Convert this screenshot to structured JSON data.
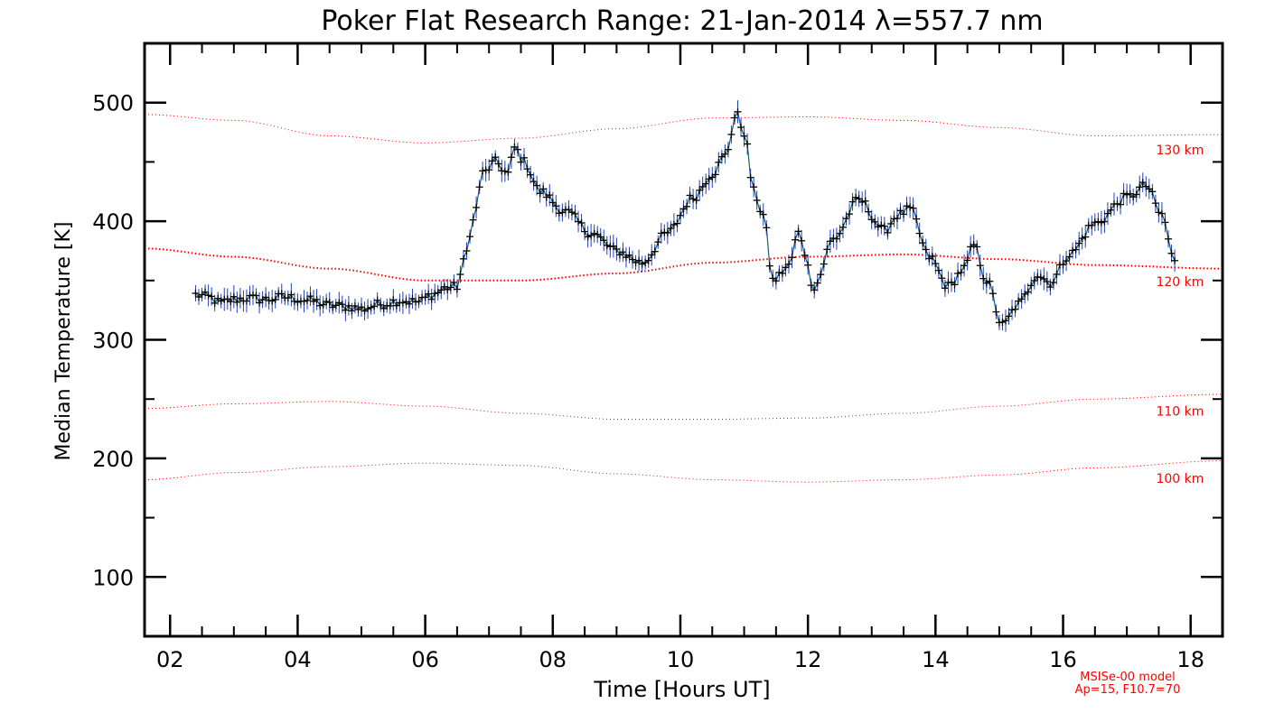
{
  "chart_data": {
    "type": "scatter",
    "title": "Poker Flat Research Range: 21-Jan-2014 λ=557.7 nm",
    "xlabel": "Time [Hours UT]",
    "ylabel": "Median Temperature [K]",
    "xlim": [
      1.6,
      18.5
    ],
    "ylim": [
      50,
      550
    ],
    "x_ticks": [
      2,
      4,
      6,
      8,
      10,
      12,
      14,
      16,
      18
    ],
    "x_tick_labels": [
      "02",
      "04",
      "06",
      "08",
      "10",
      "12",
      "14",
      "16",
      "18"
    ],
    "y_ticks": [
      100,
      200,
      300,
      400,
      500
    ],
    "y_tick_labels": [
      "100",
      "200",
      "300",
      "400",
      "500"
    ],
    "grid": false,
    "series": [
      {
        "kind": "measurement",
        "color": "#000000",
        "error_bar_color": "#1f3fbf",
        "line_color": "#1a5f6a",
        "error": 7,
        "anchors_x": [
          2.4,
          2.6,
          2.8,
          3.0,
          3.2,
          3.5,
          3.8,
          4.2,
          4.5,
          4.8,
          5.0,
          5.3,
          5.6,
          5.9,
          6.1,
          6.35,
          6.5,
          6.6,
          6.75,
          6.9,
          7.1,
          7.3,
          7.4,
          7.55,
          7.8,
          8.2,
          8.6,
          9.0,
          9.4,
          9.8,
          10.2,
          10.5,
          10.7,
          10.88,
          11.0,
          11.15,
          11.3,
          11.45,
          11.7,
          11.85,
          12.1,
          12.4,
          12.8,
          13.2,
          13.4,
          13.6,
          13.9,
          14.2,
          14.45,
          14.6,
          14.8,
          15.05,
          15.3,
          15.6,
          15.8,
          16.1,
          16.5,
          17.0,
          17.3,
          17.55,
          17.75
        ],
        "anchors_y": [
          338,
          336,
          331,
          334,
          335,
          334,
          336,
          333,
          329,
          328,
          326,
          330,
          333,
          332,
          338,
          344,
          345,
          365,
          400,
          440,
          450,
          440,
          462,
          450,
          425,
          408,
          390,
          375,
          365,
          390,
          420,
          440,
          455,
          490,
          475,
          425,
          405,
          350,
          362,
          390,
          345,
          385,
          418,
          392,
          405,
          410,
          370,
          345,
          360,
          380,
          350,
          312,
          330,
          355,
          348,
          372,
          398,
          420,
          430,
          405,
          365
        ]
      }
    ],
    "model_curves": [
      {
        "label": "130 km",
        "color": "#ff0000",
        "x": [
          1.6,
          3.0,
          4.5,
          6.0,
          7.5,
          9.0,
          10.5,
          12.0,
          13.5,
          15.0,
          16.5,
          18.5
        ],
        "y": [
          490,
          485,
          472,
          466,
          470,
          478,
          487,
          488,
          485,
          479,
          472,
          473
        ]
      },
      {
        "label": "120 km",
        "color": "#ff0000",
        "x": [
          1.6,
          3.0,
          4.5,
          6.0,
          7.5,
          9.0,
          10.5,
          12.0,
          13.5,
          15.0,
          16.5,
          18.5
        ],
        "y": [
          377,
          370,
          360,
          350,
          350,
          356,
          365,
          370,
          372,
          368,
          363,
          360
        ]
      },
      {
        "label": "110 km",
        "color": "#ff0000",
        "x": [
          1.6,
          3.0,
          4.5,
          6.0,
          7.5,
          9.0,
          10.5,
          12.0,
          13.5,
          15.0,
          16.5,
          18.5
        ],
        "y": [
          242,
          246,
          248,
          244,
          238,
          233,
          233,
          234,
          238,
          244,
          250,
          254
        ]
      },
      {
        "label": "100 km",
        "color": "#ff0000",
        "x": [
          1.6,
          3.0,
          4.5,
          6.0,
          7.5,
          9.0,
          10.5,
          12.0,
          13.5,
          15.0,
          16.5,
          18.5
        ],
        "y": [
          182,
          188,
          193,
          196,
          194,
          187,
          182,
          180,
          182,
          186,
          192,
          198
        ]
      }
    ],
    "annotation": {
      "lines": [
        "MSISe-00 model",
        "Ap=15, F10.7=70"
      ],
      "color": "#ff0000"
    }
  }
}
